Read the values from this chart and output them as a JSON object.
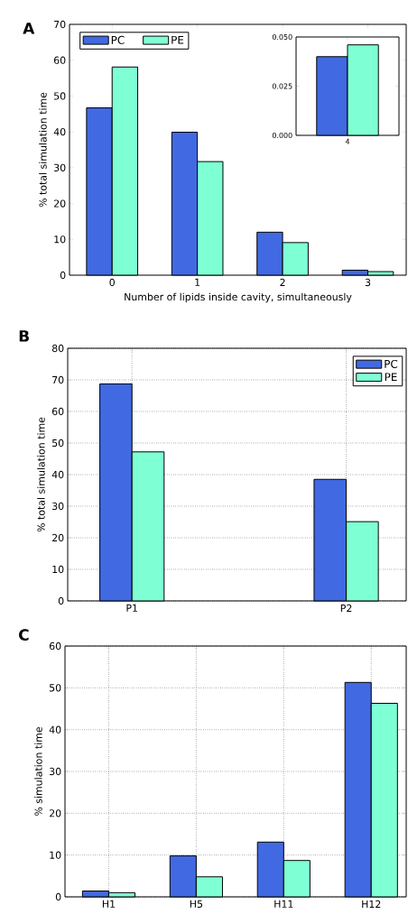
{
  "chart_data": [
    {
      "type": "bar",
      "annotations": [
        "A"
      ],
      "xlabel": "Number of lipids inside cavity, simultaneously",
      "ylabel": "% total simulation time",
      "categories": [
        "0",
        "1",
        "2",
        "3"
      ],
      "series": [
        {
          "name": "PC",
          "color": "#4169e1",
          "values": [
            46.7,
            39.9,
            12.0,
            1.4
          ]
        },
        {
          "name": "PE",
          "color": "#7fffd4",
          "values": [
            58.1,
            31.7,
            9.1,
            1.0
          ]
        }
      ],
      "ylim": [
        0,
        70
      ],
      "yticks": [
        0,
        10,
        20,
        30,
        40,
        50,
        60,
        70
      ],
      "grid": false,
      "legend": "top left"
    },
    {
      "type": "bar",
      "categories": [
        "4"
      ],
      "series": [
        {
          "color": "#4169e1",
          "values": [
            0.04
          ]
        },
        {
          "color": "#7fffd4",
          "values": [
            0.046
          ]
        }
      ],
      "ylim": [
        0,
        0.05
      ],
      "yticks": [
        {
          "value": 0,
          "label": "0.000"
        },
        {
          "value": 0.025,
          "label": "0.025"
        },
        {
          "value": 0.05,
          "label": "0.050"
        }
      ],
      "grid": false
    },
    {
      "type": "bar",
      "annotations": [
        "B"
      ],
      "ylabel": "% total simulation time",
      "categories": [
        "P1",
        "P2"
      ],
      "series": [
        {
          "name": "PC",
          "color": "#4169e1",
          "values": [
            68.7,
            38.5
          ]
        },
        {
          "name": "PE",
          "color": "#7fffd4",
          "values": [
            47.2,
            25.1
          ]
        }
      ],
      "ylim": [
        0,
        80
      ],
      "yticks": [
        0,
        10,
        20,
        30,
        40,
        50,
        60,
        70,
        80
      ],
      "grid": true,
      "legend": "top right"
    },
    {
      "type": "bar",
      "annotations": [
        "C"
      ],
      "ylabel": "% simulation time",
      "categories": [
        "H1",
        "H5",
        "H11",
        "H12"
      ],
      "series": [
        {
          "color": "#4169e1",
          "values": [
            1.4,
            9.8,
            13.1,
            51.3
          ]
        },
        {
          "color": "#7fffd4",
          "values": [
            1.0,
            4.8,
            8.7,
            46.3
          ]
        }
      ],
      "ylim": [
        0,
        60
      ],
      "yticks": [
        0,
        10,
        20,
        30,
        40,
        50,
        60
      ],
      "grid": true
    }
  ]
}
